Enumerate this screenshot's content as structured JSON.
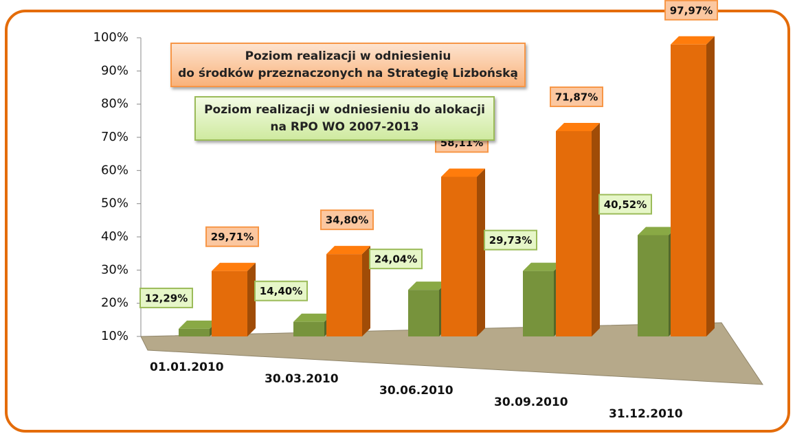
{
  "chart_data": {
    "type": "bar",
    "categories": [
      "01.01.2010",
      "30.03.2010",
      "30.06.2010",
      "30.09.2010",
      "31.12.2010"
    ],
    "series": [
      {
        "name": "Poziom realizacji w odniesieniu do alokacji\nna RPO WO 2007-2013",
        "color": "#77933c",
        "values": [
          12.29,
          14.4,
          24.04,
          29.73,
          40.52
        ],
        "value_labels": [
          "12,29%",
          "14,40%",
          "24,04%",
          "29,73%",
          "40,52%"
        ]
      },
      {
        "name": "Poziom realizacji w odniesieniu\ndo środków przeznaczonych na Strategię Lizbońską",
        "color": "#e46c0a",
        "values": [
          29.71,
          34.8,
          58.11,
          71.87,
          97.97
        ],
        "value_labels": [
          "29,71%",
          "34,80%",
          "58,11%",
          "71,87%",
          "97,97%"
        ]
      }
    ],
    "ylim": [
      10,
      100
    ],
    "yticks": [
      {
        "value": 10,
        "label": "10%"
      },
      {
        "value": 20,
        "label": "20%"
      },
      {
        "value": 30,
        "label": "30%"
      },
      {
        "value": 40,
        "label": "40%"
      },
      {
        "value": 50,
        "label": "50%"
      },
      {
        "value": 60,
        "label": "60%"
      },
      {
        "value": 70,
        "label": "70%"
      },
      {
        "value": 80,
        "label": "80%"
      },
      {
        "value": 90,
        "label": "90%"
      },
      {
        "value": 100,
        "label": "100%"
      }
    ]
  }
}
